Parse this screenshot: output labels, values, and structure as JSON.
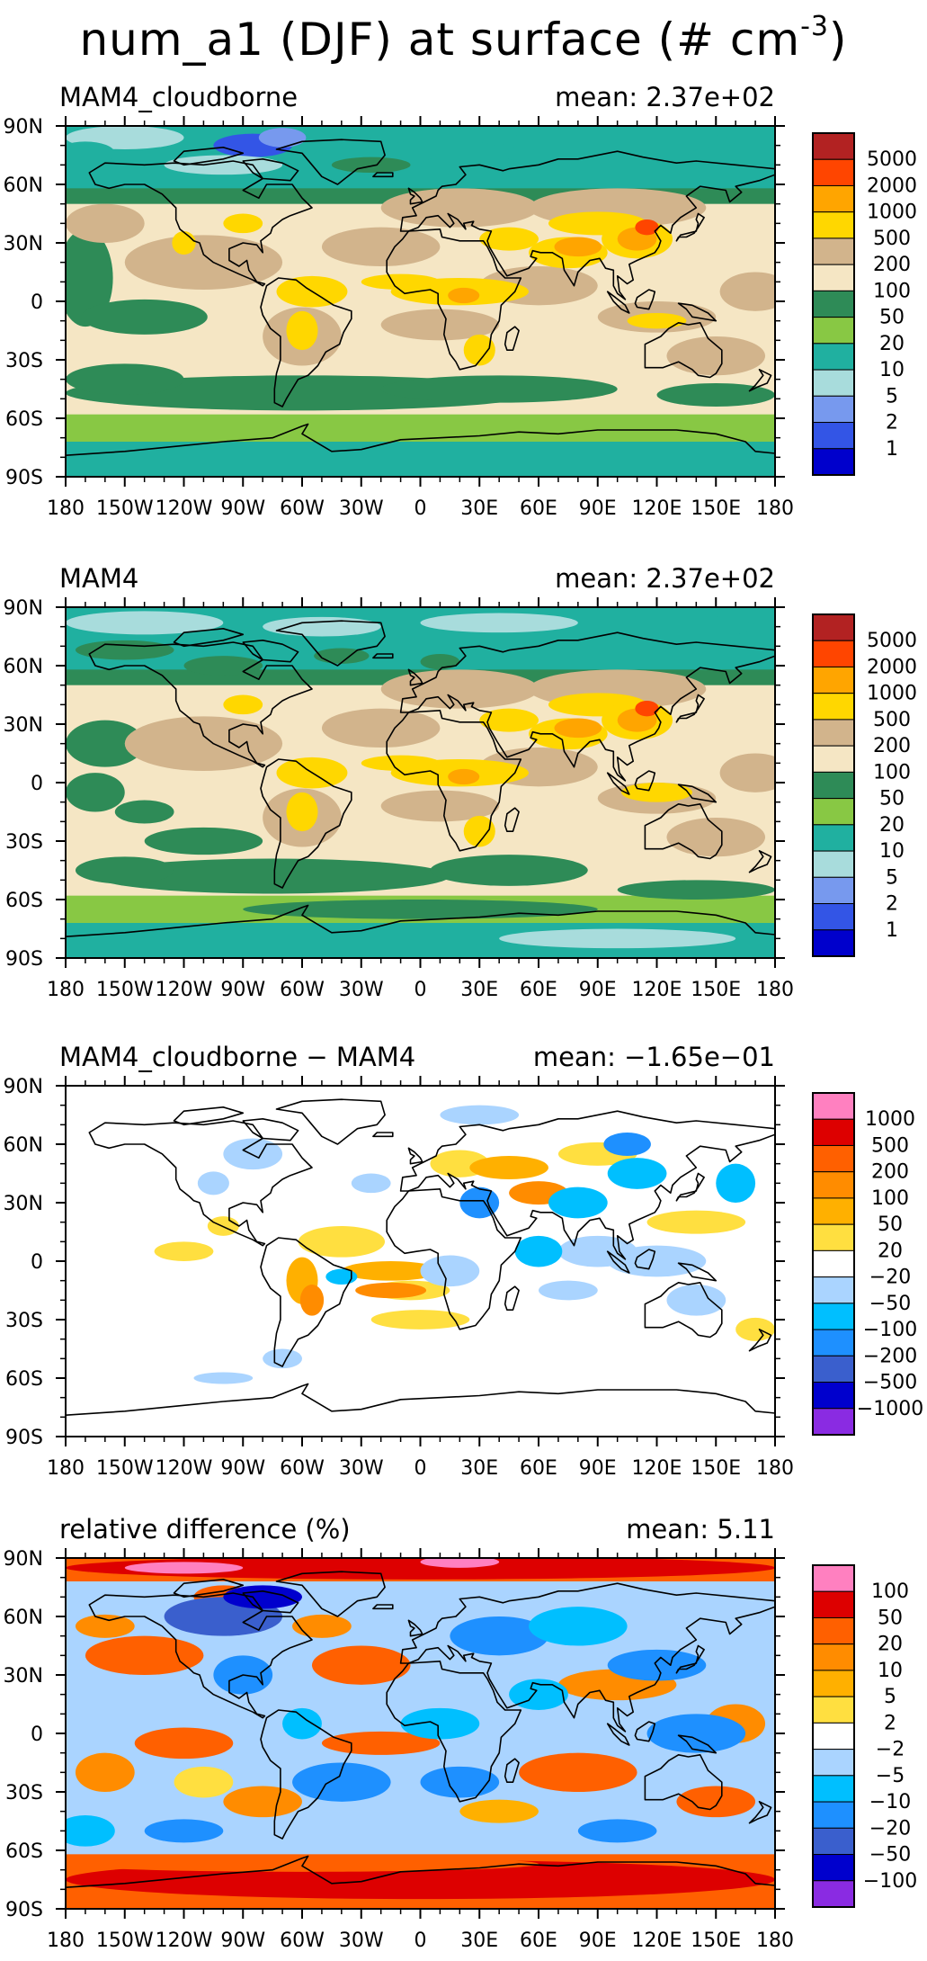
{
  "title": {
    "main": "num_a1 (DJF) at surface (# cm",
    "sup": "-3",
    "close": ")"
  },
  "x_ticks": [
    "180",
    "150W",
    "120W",
    "90W",
    "60W",
    "30W",
    "0",
    "30E",
    "60E",
    "90E",
    "120E",
    "150E",
    "180"
  ],
  "y_ticks": [
    "90N",
    "60N",
    "30N",
    "0",
    "30S",
    "60S",
    "90S"
  ],
  "colors": {
    "abs": [
      "#0000cc",
      "#3355e6",
      "#7799ee",
      "#a8dcdc",
      "#20b0a0",
      "#88c844",
      "#2e8b57",
      "#f5e6c4",
      "#d2b48c",
      "#ffd700",
      "#ffa500",
      "#ff4500",
      "#b22222"
    ],
    "diff": [
      "#8a2be2",
      "#0000cd",
      "#3a5fcd",
      "#1e90ff",
      "#00bfff",
      "#aad4ff",
      "#ffffff",
      "#ffdf40",
      "#ffb000",
      "#ff8c00",
      "#ff6000",
      "#dd0000",
      "#ff80c0"
    ]
  },
  "chart_data": [
    {
      "type": "heatmap",
      "projection": "cylindrical equidistant map",
      "title": "MAM4_cloudborne",
      "mean_label": "mean: 2.37e+02",
      "colorbar_labels": [
        "5000",
        "2000",
        "1000",
        "500",
        "200",
        "100",
        "50",
        "20",
        "10",
        "5",
        "2",
        "1"
      ],
      "colorbar_levels": [
        1,
        2,
        5,
        10,
        20,
        50,
        100,
        200,
        500,
        1000,
        2000,
        5000
      ],
      "xlim": [
        -180,
        180
      ],
      "ylim": [
        -90,
        90
      ],
      "grid": false
    },
    {
      "type": "heatmap",
      "projection": "cylindrical equidistant map",
      "title": "MAM4",
      "mean_label": "mean: 2.37e+02",
      "colorbar_labels": [
        "5000",
        "2000",
        "1000",
        "500",
        "200",
        "100",
        "50",
        "20",
        "10",
        "5",
        "2",
        "1"
      ],
      "colorbar_levels": [
        1,
        2,
        5,
        10,
        20,
        50,
        100,
        200,
        500,
        1000,
        2000,
        5000
      ],
      "xlim": [
        -180,
        180
      ],
      "ylim": [
        -90,
        90
      ],
      "grid": false
    },
    {
      "type": "heatmap",
      "projection": "cylindrical equidistant map",
      "title": "MAM4_cloudborne − MAM4",
      "mean_label": "mean: −1.65e−01",
      "colorbar_labels": [
        "1000",
        "500",
        "200",
        "100",
        "50",
        "20",
        "−20",
        "−50",
        "−100",
        "−200",
        "−500",
        "−1000"
      ],
      "colorbar_levels": [
        -1000,
        -500,
        -200,
        -100,
        -50,
        -20,
        20,
        50,
        100,
        200,
        500,
        1000
      ],
      "xlim": [
        -180,
        180
      ],
      "ylim": [
        -90,
        90
      ],
      "grid": false
    },
    {
      "type": "heatmap",
      "projection": "cylindrical equidistant map",
      "title": "relative difference (%)",
      "mean_label": "mean:  5.11",
      "colorbar_labels": [
        "100",
        "50",
        "20",
        "10",
        "5",
        "2",
        "−2",
        "−5",
        "−10",
        "−20",
        "−50",
        "−100"
      ],
      "colorbar_levels": [
        -100,
        -50,
        -20,
        -10,
        -5,
        -2,
        2,
        5,
        10,
        20,
        50,
        100
      ],
      "xlim": [
        -180,
        180
      ],
      "ylim": [
        -90,
        90
      ],
      "grid": false
    }
  ]
}
